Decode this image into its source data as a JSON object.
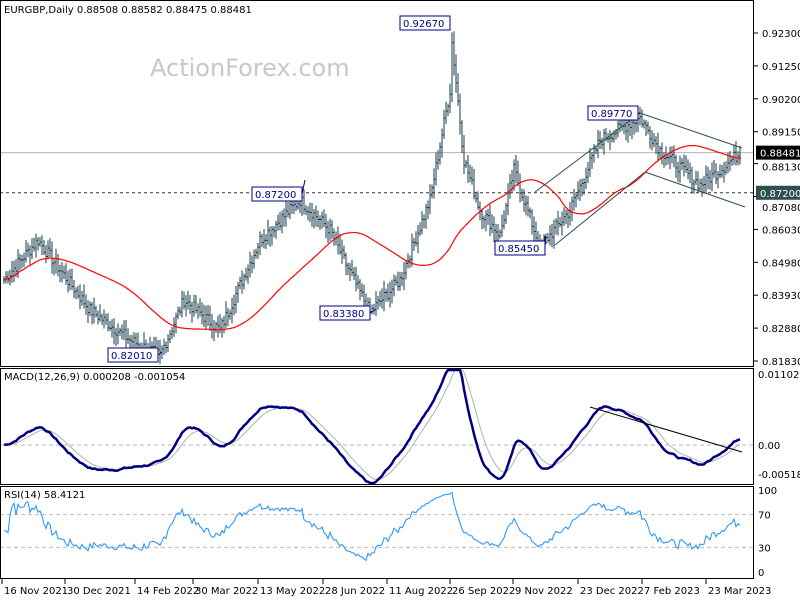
{
  "chart_data": {
    "type": "ohlc",
    "title": "EURGBP,Daily  0.88508 0.88582 0.88475 0.88481",
    "watermark": "ActionForex.com",
    "price_axis": {
      "ticks": [
        "0.92300",
        "0.91250",
        "0.90200",
        "0.89150",
        "0.88130",
        "0.87080",
        "0.86030",
        "0.84980",
        "0.83930",
        "0.82880",
        "0.81830"
      ],
      "ylim": [
        0.8183,
        0.923
      ]
    },
    "current_price": "0.88481",
    "support_level": "0.87200",
    "moving_average": "55-day SMA",
    "price_anchors": [
      [
        0,
        0.8442
      ],
      [
        17,
        0.8569
      ],
      [
        28,
        0.8474
      ],
      [
        43,
        0.8346
      ],
      [
        63,
        0.825
      ],
      [
        78,
        0.8201
      ],
      [
        90,
        0.8378
      ],
      [
        108,
        0.8282
      ],
      [
        128,
        0.8569
      ],
      [
        148,
        0.8697
      ],
      [
        163,
        0.8601
      ],
      [
        170,
        0.8505
      ],
      [
        183,
        0.8338
      ],
      [
        198,
        0.8442
      ],
      [
        213,
        0.8697
      ],
      [
        223,
        0.9048
      ],
      [
        224,
        0.92
      ],
      [
        230,
        0.8825
      ],
      [
        238,
        0.8665
      ],
      [
        248,
        0.8585
      ],
      [
        255,
        0.8793
      ],
      [
        268,
        0.8545
      ],
      [
        283,
        0.8665
      ],
      [
        298,
        0.8888
      ],
      [
        318,
        0.896
      ],
      [
        328,
        0.8857
      ],
      [
        348,
        0.8745
      ],
      [
        358,
        0.8793
      ],
      [
        368,
        0.8848
      ]
    ],
    "annotations": [
      "0.92670",
      "0.89770",
      "0.87200",
      "0.85450",
      "0.83380",
      "0.82010"
    ],
    "macd": {
      "label": "MACD(12,26,9) 0.000208 -0.001054",
      "ticks": [
        "0.011023",
        "0.00",
        "-0.005182"
      ],
      "ylim": [
        -0.005182,
        0.011023
      ]
    },
    "rsi": {
      "label": "RSI(14) 58.4121",
      "ticks": [
        "100",
        "70",
        "30",
        "0"
      ],
      "ylim": [
        0,
        100
      ]
    },
    "x_ticks": [
      "16 Nov 2021",
      "30 Dec 2021",
      "14 Feb 2022",
      "30 Mar 2022",
      "13 May 2022",
      "28 Jun 2022",
      "11 Aug 2022",
      "26 Sep 2022",
      "9 Nov 2022",
      "23 Dec 2022",
      "7 Feb 2023",
      "23 Mar 2023"
    ],
    "colors": {
      "bars": "#1b3b4b",
      "ma": "#ff0000",
      "macd": "#000080",
      "signal": "#b0b0b0",
      "rsi": "#1e90ff"
    }
  }
}
